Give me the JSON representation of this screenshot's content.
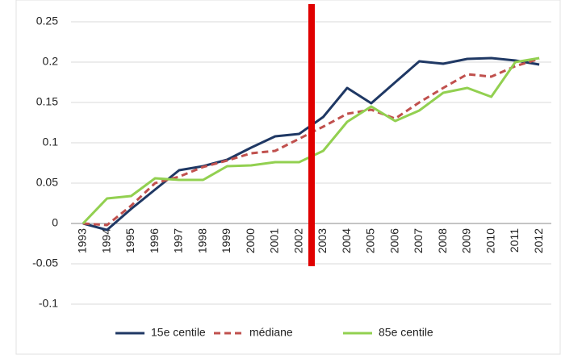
{
  "chart_data": {
    "type": "line",
    "categories": [
      "1993",
      "1994",
      "1995",
      "1996",
      "1997",
      "1998",
      "1999",
      "2000",
      "2001",
      "2002",
      "2003",
      "2004",
      "2005",
      "2006",
      "2007",
      "2008",
      "2009",
      "2010",
      "2011",
      "2012"
    ],
    "series": [
      {
        "name": "15e centile",
        "color": "#1f3864",
        "dash": false,
        "values": [
          0,
          -0.008,
          0.018,
          0.042,
          0.066,
          0.071,
          0.079,
          0.094,
          0.108,
          0.111,
          0.132,
          0.168,
          0.149,
          0.175,
          0.201,
          0.198,
          0.204,
          0.205,
          0.202,
          0.197
        ]
      },
      {
        "name": "médiane",
        "color": "#c0504d",
        "dash": true,
        "values": [
          0,
          -0.002,
          0.022,
          0.05,
          0.058,
          0.07,
          0.078,
          0.087,
          0.09,
          0.105,
          0.12,
          0.136,
          0.141,
          0.13,
          0.15,
          0.168,
          0.185,
          0.182,
          0.195,
          0.204
        ]
      },
      {
        "name": "85e centile",
        "color": "#92d050",
        "dash": false,
        "values": [
          0,
          0.031,
          0.034,
          0.056,
          0.054,
          0.054,
          0.071,
          0.072,
          0.076,
          0.076,
          0.09,
          0.126,
          0.145,
          0.127,
          0.14,
          0.162,
          0.168,
          0.157,
          0.2,
          0.205
        ]
      }
    ],
    "ylim": [
      -0.1,
      0.25
    ],
    "yticks": [
      -0.1,
      -0.05,
      0,
      0.05,
      0.1,
      0.15,
      0.2,
      0.25
    ],
    "grid": true,
    "legend": "bottom"
  }
}
